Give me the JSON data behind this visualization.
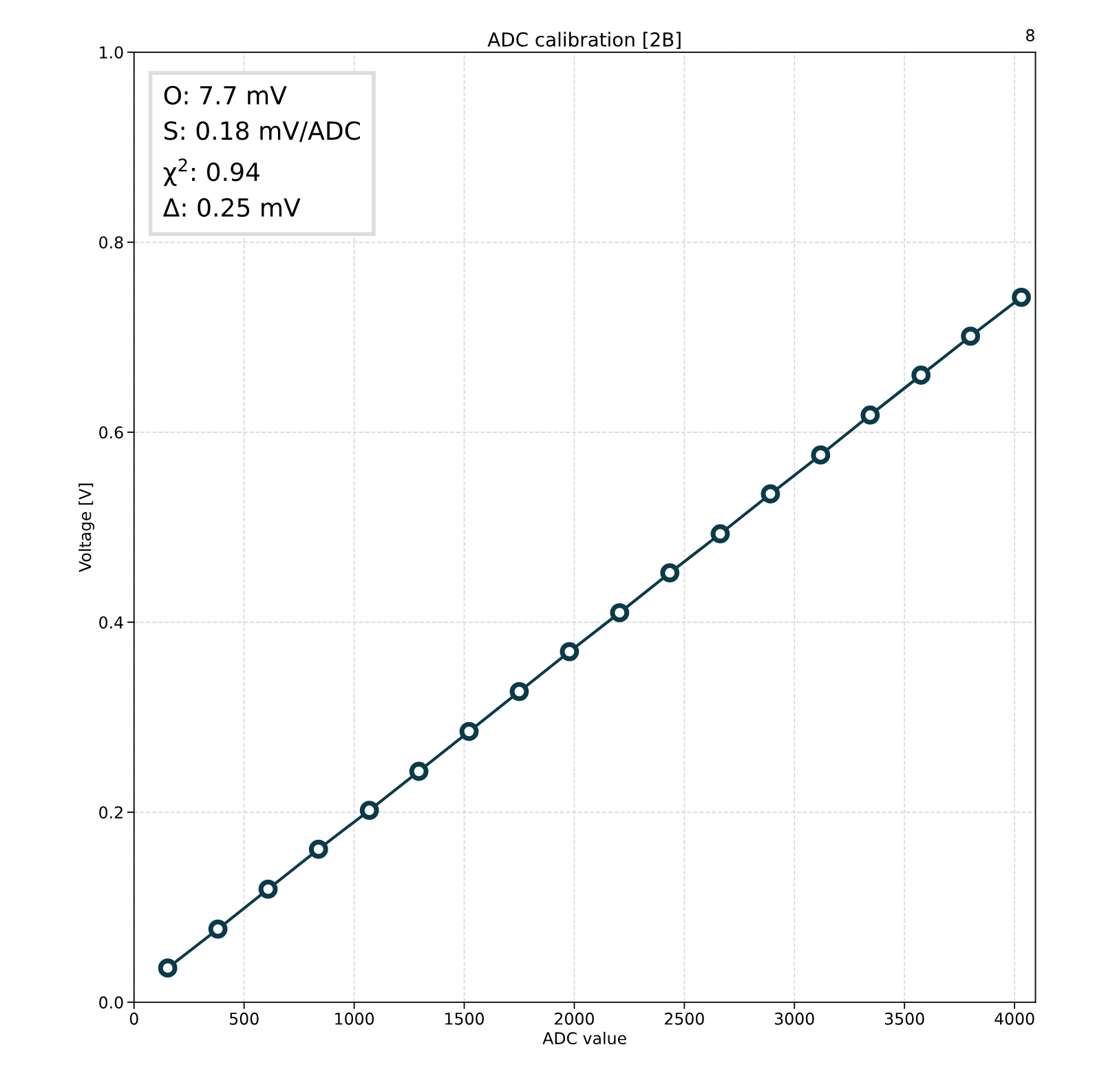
{
  "chart_data": {
    "type": "line",
    "title": "ADC calibration [2B]",
    "xlabel": "ADC value",
    "ylabel": "Voltage [V]",
    "annotations": [
      "8",
      "O: 7.7 mV",
      "S: 0.18 mV/ADC",
      "χ$^{2}$: 0.94",
      "Δ: 0.25 mV"
    ],
    "x": [
      153,
      381,
      609,
      838,
      1069,
      1294,
      1522,
      1750,
      1978,
      2206,
      2434,
      2663,
      2891,
      3119,
      3344,
      3575,
      3800,
      4031
    ],
    "series": [
      {
        "color": "#0b3a4a",
        "values": [
          0.036,
          0.077,
          0.119,
          0.161,
          0.202,
          0.243,
          0.285,
          0.327,
          0.369,
          0.41,
          0.452,
          0.493,
          0.535,
          0.576,
          0.618,
          0.66,
          0.701,
          0.742
        ]
      }
    ],
    "xlim": [
      0,
      4095
    ],
    "xticks": [
      0,
      500,
      1000,
      1500,
      2000,
      2500,
      3000,
      3500,
      4000
    ],
    "ylim": [
      0,
      1
    ],
    "yticks": [
      {
        "value": 0,
        "label": "0.0"
      },
      0.2,
      0.4,
      0.6,
      0.8,
      {
        "value": 1,
        "label": "1.0"
      }
    ],
    "grid": true,
    "marker": "circle",
    "line_style": "solid"
  }
}
